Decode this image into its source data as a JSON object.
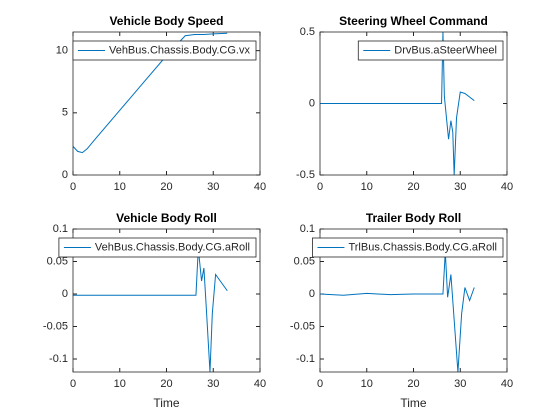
{
  "chart_data": [
    {
      "type": "line",
      "title": "Vehicle Body Speed",
      "x": [
        0,
        1,
        2,
        3,
        5,
        10,
        15,
        20,
        24,
        26,
        28,
        30,
        33
      ],
      "series": [
        {
          "name": "VehBus.Chassis.Body.CG.vx",
          "color": "#0072bd",
          "values": [
            2.3,
            1.9,
            1.8,
            2.1,
            3.0,
            5.2,
            7.4,
            9.6,
            11.2,
            11.3,
            11.3,
            11.35,
            11.4
          ]
        }
      ],
      "xlim": [
        0,
        40
      ],
      "xticks": [
        0,
        10,
        20,
        30,
        40
      ],
      "ylim": [
        0,
        11.5
      ],
      "yticks": [
        0,
        5,
        10
      ],
      "legend": "northeast"
    },
    {
      "type": "line",
      "title": "Steering Wheel Command",
      "x": [
        0,
        10,
        20,
        26,
        26.3,
        26.6,
        27.5,
        28,
        28.4,
        28.7,
        29.2,
        30,
        31,
        33
      ],
      "series": [
        {
          "name": "DrvBus.aSteerWheel",
          "color": "#0072bd",
          "values": [
            0,
            0,
            0,
            0,
            0.5,
            0.05,
            -0.25,
            -0.12,
            -0.2,
            -0.5,
            -0.1,
            0.08,
            0.07,
            0.02
          ]
        }
      ],
      "xlim": [
        0,
        40
      ],
      "xticks": [
        0,
        10,
        20,
        30,
        40
      ],
      "ylim": [
        -0.5,
        0.5
      ],
      "yticks": [
        -0.5,
        0,
        0.5
      ],
      "legend": "northeast"
    },
    {
      "type": "line",
      "title": "Vehicle Body Roll",
      "xlabel": "Time",
      "x": [
        0,
        10,
        20,
        26.3,
        26.8,
        27.5,
        28,
        28.5,
        29.3,
        29.8,
        30.5,
        31.5,
        33
      ],
      "series": [
        {
          "name": "VehBus.Chassis.Body.CG.aRoll",
          "color": "#0072bd",
          "values": [
            -0.002,
            -0.002,
            -0.002,
            -0.002,
            0.07,
            0.02,
            0.04,
            -0.02,
            -0.12,
            -0.03,
            0.03,
            0.02,
            0.005
          ]
        }
      ],
      "xlim": [
        0,
        40
      ],
      "xticks": [
        0,
        10,
        20,
        30,
        40
      ],
      "ylim": [
        -0.12,
        0.1
      ],
      "yticks": [
        -0.1,
        -0.05,
        0,
        0.05,
        0.1
      ],
      "legend": "northeast"
    },
    {
      "type": "line",
      "title": "Trailer Body Roll",
      "xlabel": "Time",
      "x": [
        0,
        5,
        10,
        15,
        20,
        26.3,
        26.8,
        27.3,
        28,
        28.7,
        29.5,
        30.3,
        31,
        32,
        33
      ],
      "series": [
        {
          "name": "TrlBus.Chassis.Body.CG.aRoll",
          "color": "#0072bd",
          "values": [
            0,
            -0.002,
            0.001,
            -0.001,
            0,
            0,
            0.065,
            -0.005,
            0.03,
            -0.04,
            -0.12,
            -0.03,
            0.01,
            -0.01,
            0.01
          ]
        }
      ],
      "xlim": [
        0,
        40
      ],
      "xticks": [
        0,
        10,
        20,
        30,
        40
      ],
      "ylim": [
        -0.12,
        0.1
      ],
      "yticks": [
        -0.1,
        -0.05,
        0,
        0.05,
        0.1
      ],
      "legend": "northeast"
    }
  ]
}
